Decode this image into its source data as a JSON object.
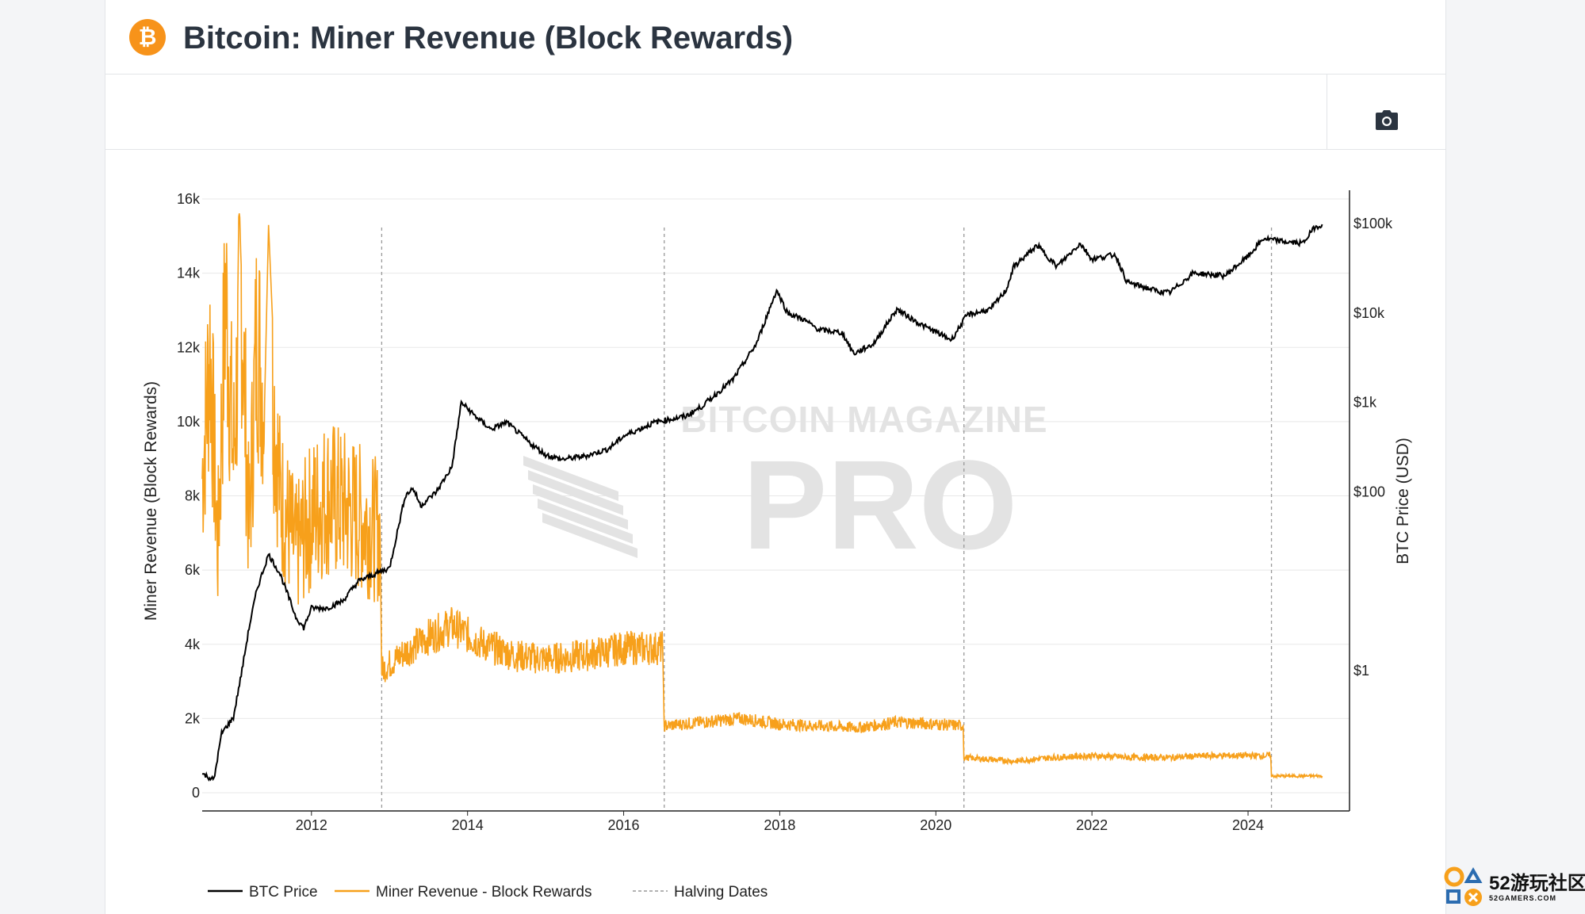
{
  "header": {
    "logo_symbol": "₿",
    "title": "Bitcoin: Miner Revenue (Block Rewards)"
  },
  "toolbar": {
    "camera_icon": "camera-icon"
  },
  "watermark": {
    "text": "BITCOIN MAGAZINE",
    "sub": "PRO"
  },
  "corner_badge": {
    "text": "52游玩社区",
    "sub": "52GAMERS.COM"
  },
  "colors": {
    "btc_price": "#000000",
    "revenue": "#f7a01b",
    "halving": "#999999",
    "brand": "#f7931a"
  },
  "chart_data": {
    "type": "line",
    "title": "Bitcoin: Miner Revenue (Block Rewards)",
    "x_ticks": [
      "2012",
      "2014",
      "2016",
      "2018",
      "2020",
      "2022",
      "2024"
    ],
    "xlim": [
      2010.6,
      2025.3
    ],
    "y_left": {
      "label": "Miner Revenue (Block Rewards)",
      "ticks": [
        "0",
        "2k",
        "4k",
        "6k",
        "8k",
        "10k",
        "12k",
        "14k",
        "16k"
      ],
      "tick_values": [
        0,
        2000,
        4000,
        6000,
        8000,
        10000,
        12000,
        14000,
        16000
      ],
      "range": [
        0,
        16000
      ]
    },
    "y_right": {
      "label": "BTC Price (USD)",
      "scale": "log",
      "ticks": [
        "$1",
        "$100",
        "$1k",
        "$10k",
        "$100k"
      ],
      "tick_values": [
        1,
        100,
        1000,
        10000,
        100000
      ],
      "range": [
        0.05,
        200000
      ]
    },
    "grid": true,
    "legend": {
      "placement": "bottom-left",
      "entries": [
        "BTC Price",
        "Miner Revenue - Block Rewards",
        "Halving Dates"
      ]
    },
    "halving_dates": [
      2012.9,
      2016.52,
      2020.36,
      2024.3
    ],
    "series": [
      {
        "name": "BTC Price",
        "axis": "right",
        "x": [
          2010.6,
          2010.75,
          2010.85,
          2011.0,
          2011.1,
          2011.2,
          2011.3,
          2011.45,
          2011.6,
          2011.8,
          2011.9,
          2012.0,
          2012.2,
          2012.4,
          2012.6,
          2012.9,
          2013.0,
          2013.2,
          2013.3,
          2013.4,
          2013.6,
          2013.8,
          2013.92,
          2014.1,
          2014.3,
          2014.5,
          2014.8,
          2015.0,
          2015.2,
          2015.5,
          2015.8,
          2016.0,
          2016.4,
          2016.8,
          2017.0,
          2017.4,
          2017.7,
          2017.96,
          2018.1,
          2018.3,
          2018.5,
          2018.8,
          2018.95,
          2019.2,
          2019.5,
          2019.8,
          2020.2,
          2020.4,
          2020.7,
          2020.9,
          2021.0,
          2021.3,
          2021.55,
          2021.85,
          2022.0,
          2022.3,
          2022.45,
          2022.9,
          2023.0,
          2023.3,
          2023.7,
          2024.0,
          2024.2,
          2024.5,
          2024.7,
          2024.85,
          2024.95
        ],
        "y": [
          0.07,
          0.06,
          0.2,
          0.3,
          0.9,
          3.0,
          8.0,
          20,
          12,
          4,
          3,
          5,
          5,
          6,
          10,
          13,
          14,
          90,
          110,
          70,
          100,
          190,
          1000,
          700,
          500,
          600,
          350,
          260,
          230,
          250,
          300,
          420,
          600,
          700,
          900,
          1800,
          4500,
          18000,
          10000,
          8500,
          6500,
          6000,
          3500,
          4500,
          11000,
          7500,
          5000,
          9500,
          11000,
          18000,
          33000,
          57000,
          33000,
          60000,
          40000,
          45000,
          22000,
          17000,
          17000,
          28000,
          26000,
          43000,
          68000,
          62000,
          60000,
          90000,
          98000
        ]
      },
      {
        "name": "Miner Revenue - Block Rewards",
        "axis": "left",
        "x": [
          2010.6,
          2010.7,
          2010.8,
          2010.9,
          2011.0,
          2011.1,
          2011.2,
          2011.3,
          2011.4,
          2011.45,
          2011.5,
          2011.6,
          2011.8,
          2012.0,
          2012.2,
          2012.5,
          2012.88,
          2012.9,
          2013.2,
          2013.5,
          2013.8,
          2014.2,
          2014.6,
          2015.0,
          2015.5,
          2016.0,
          2016.5,
          2016.52,
          2017.0,
          2017.5,
          2018.0,
          2018.5,
          2019.0,
          2019.5,
          2020.0,
          2020.35,
          2020.36,
          2021.0,
          2021.5,
          2022.0,
          2022.5,
          2023.0,
          2023.5,
          2024.0,
          2024.29,
          2024.3,
          2024.7,
          2024.95
        ],
        "y": [
          8500,
          12000,
          6500,
          13500,
          9000,
          13800,
          7000,
          12500,
          10500,
          15300,
          11000,
          8000,
          6500,
          7500,
          8000,
          7600,
          7000,
          3300,
          3800,
          4200,
          4500,
          4000,
          3700,
          3600,
          3700,
          3900,
          3900,
          1800,
          1900,
          2000,
          1850,
          1800,
          1750,
          1900,
          1850,
          1800,
          950,
          850,
          950,
          1000,
          950,
          950,
          1000,
          1000,
          1000,
          450,
          450,
          450
        ]
      }
    ]
  }
}
